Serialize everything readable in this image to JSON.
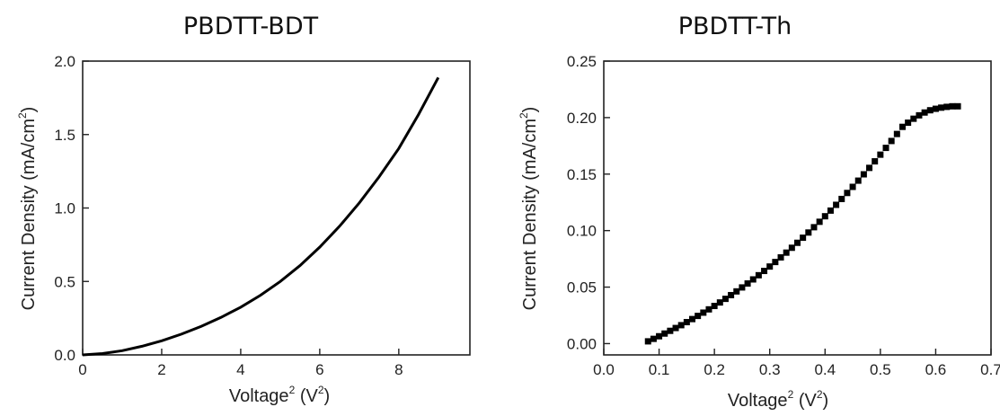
{
  "chart_data": [
    {
      "type": "line",
      "title": "PBDTT-BDT",
      "xlabel": {
        "base": "Voltage",
        "sup": "2",
        "unit_base": "(V",
        "unit_sup": "2",
        "unit_end": ")"
      },
      "ylabel": {
        "base": "Current Density (mA/cm",
        "sup": "2",
        "end": ")"
      },
      "xlim": [
        0,
        9.8
      ],
      "ylim": [
        0,
        2.0
      ],
      "xticks": [
        0,
        2,
        4,
        6,
        8
      ],
      "xtick_labels": [
        "0",
        "2",
        "4",
        "6",
        "8"
      ],
      "yticks": [
        0,
        0.5,
        1.0,
        1.5,
        2.0
      ],
      "ytick_labels": [
        "0.0",
        "0.5",
        "1.0",
        "1.5",
        "2.0"
      ],
      "grid": false,
      "series": [
        {
          "x": [
            0,
            0.5,
            1,
            1.5,
            2,
            2.5,
            3,
            3.5,
            4,
            4.5,
            5,
            5.5,
            6,
            6.5,
            7,
            7.5,
            8,
            8.5,
            9
          ],
          "values": [
            0.0,
            0.009,
            0.029,
            0.059,
            0.096,
            0.141,
            0.194,
            0.255,
            0.325,
            0.406,
            0.5,
            0.608,
            0.734,
            0.876,
            1.035,
            1.211,
            1.405,
            1.636,
            1.888
          ]
        }
      ]
    },
    {
      "type": "scatter",
      "title": "PBDTT-Th",
      "xlabel": {
        "base": "Voltage",
        "sup": "2",
        "unit_base": "(V",
        "unit_sup": "2",
        "unit_end": ")"
      },
      "ylabel": {
        "base": "Current Density (mA/cm",
        "sup": "2",
        "end": ")"
      },
      "xlim": [
        0.0,
        0.7
      ],
      "ylim": [
        -0.01,
        0.25
      ],
      "xticks": [
        0.0,
        0.1,
        0.2,
        0.3,
        0.4,
        0.5,
        0.6,
        0.7
      ],
      "xtick_labels": [
        "0.0",
        "0.1",
        "0.2",
        "0.3",
        "0.4",
        "0.5",
        "0.6",
        "0.7"
      ],
      "yticks": [
        0.0,
        0.05,
        0.1,
        0.15,
        0.2,
        0.25
      ],
      "ytick_labels": [
        "0.00",
        "0.05",
        "0.10",
        "0.15",
        "0.20",
        "0.25"
      ],
      "grid": false,
      "series": [
        {
          "x": [
            0.08,
            0.09,
            0.1,
            0.11,
            0.12,
            0.13,
            0.14,
            0.15,
            0.16,
            0.17,
            0.18,
            0.19,
            0.2,
            0.21,
            0.22,
            0.23,
            0.24,
            0.25,
            0.26,
            0.27,
            0.28,
            0.29,
            0.3,
            0.31,
            0.32,
            0.33,
            0.34,
            0.35,
            0.36,
            0.37,
            0.38,
            0.39,
            0.4,
            0.41,
            0.42,
            0.43,
            0.44,
            0.45,
            0.46,
            0.47,
            0.48,
            0.49,
            0.5,
            0.51,
            0.52,
            0.53,
            0.54,
            0.55,
            0.56,
            0.57,
            0.58,
            0.59,
            0.6,
            0.61,
            0.62,
            0.63,
            0.64
          ],
          "values": [
            0.002,
            0.0042,
            0.0065,
            0.0089,
            0.0113,
            0.0138,
            0.0163,
            0.019,
            0.0217,
            0.0245,
            0.0274,
            0.0303,
            0.0333,
            0.0364,
            0.0396,
            0.0429,
            0.0462,
            0.0497,
            0.0532,
            0.0568,
            0.0605,
            0.0643,
            0.0682,
            0.0722,
            0.0763,
            0.0805,
            0.0848,
            0.0892,
            0.0937,
            0.0983,
            0.103,
            0.1078,
            0.1127,
            0.1177,
            0.1228,
            0.128,
            0.1333,
            0.1387,
            0.1442,
            0.1498,
            0.1555,
            0.1613,
            0.1672,
            0.1732,
            0.1793,
            0.1855,
            0.1918,
            0.1955,
            0.199,
            0.202,
            0.2045,
            0.2065,
            0.2078,
            0.2088,
            0.2095,
            0.21,
            0.21
          ]
        }
      ]
    }
  ]
}
